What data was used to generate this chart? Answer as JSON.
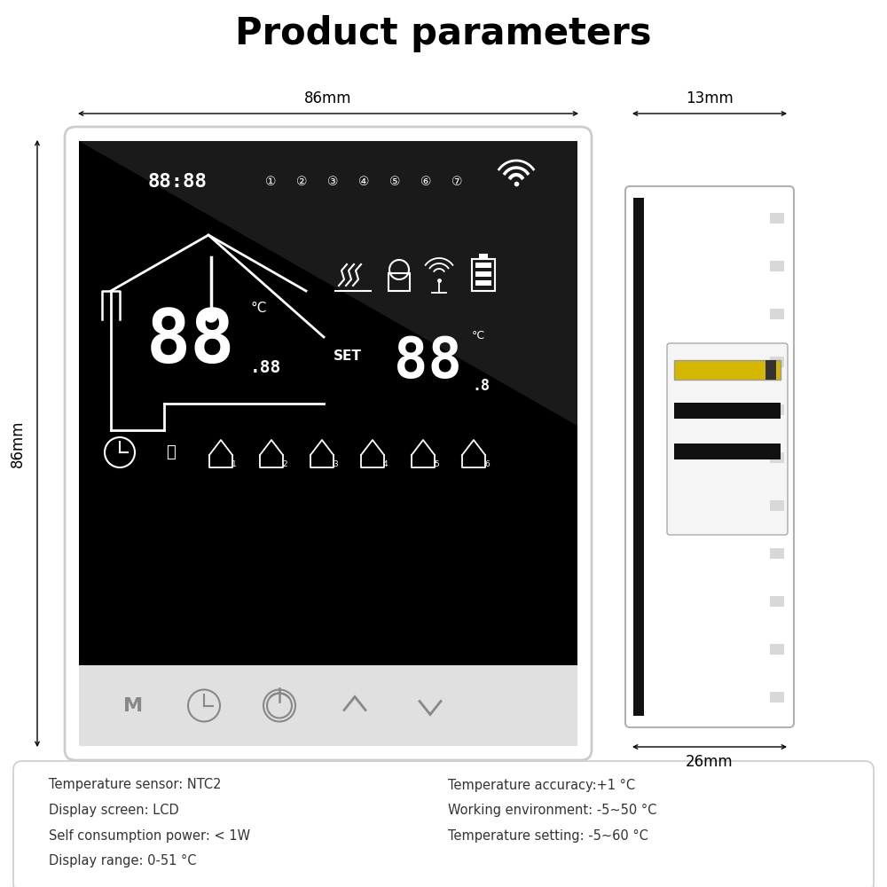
{
  "title": "Product parameters",
  "title_fontsize": 30,
  "title_fontweight": "bold",
  "bg_color": "#ffffff",
  "dim_86mm_label": "86mm",
  "dim_13mm_label": "13mm",
  "dim_26mm_label": "26mm",
  "dim_86mm_side_label": "86mm",
  "specs_left": [
    "Temperature sensor: NTC2",
    "Display screen: LCD",
    "Self consumption power: < 1W",
    "Display range: 0-51 °C"
  ],
  "specs_right": [
    "Temperature accuracy:+1 °C",
    "Working environment: -5~50 °C",
    "Temperature setting: -5~60 °C"
  ],
  "thermostat_bg": "#000000",
  "button_color": "#aaaaaa"
}
